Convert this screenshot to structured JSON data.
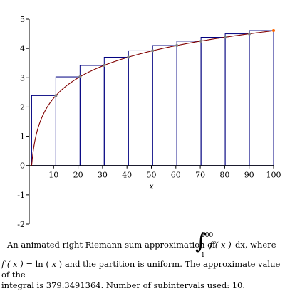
{
  "chart_data": {
    "type": "bar",
    "xlabel": "x",
    "ylabel": "",
    "xlim": [
      0,
      100
    ],
    "ylim": [
      -2,
      5
    ],
    "xticks": [
      "10",
      "20",
      "30",
      "40",
      "50",
      "60",
      "70",
      "80",
      "90",
      "100"
    ],
    "yticks": [
      "-2",
      "-1",
      "0",
      "1",
      "2",
      "3",
      "4",
      "5"
    ],
    "rectangles": [
      {
        "x_left": 1,
        "x_right": 10.9,
        "height": 2.39
      },
      {
        "x_left": 10.9,
        "x_right": 20.8,
        "height": 3.03
      },
      {
        "x_left": 20.8,
        "x_right": 30.7,
        "height": 3.42
      },
      {
        "x_left": 30.7,
        "x_right": 40.6,
        "height": 3.7
      },
      {
        "x_left": 40.6,
        "x_right": 50.5,
        "height": 3.92
      },
      {
        "x_left": 50.5,
        "x_right": 60.4,
        "height": 4.1
      },
      {
        "x_left": 60.4,
        "x_right": 70.3,
        "height": 4.25
      },
      {
        "x_left": 70.3,
        "x_right": 80.2,
        "height": 4.38
      },
      {
        "x_left": 80.2,
        "x_right": 90.1,
        "height": 4.5
      },
      {
        "x_left": 90.1,
        "x_right": 100,
        "height": 4.61
      }
    ],
    "curve": {
      "function": "ln(x)",
      "x_start": 1,
      "x_end": 100
    },
    "colors": {
      "rectangles": "#000080",
      "curve": "#800000",
      "points": "#808080",
      "last_point": "#ff6600"
    }
  },
  "caption": {
    "line1_start": "An animated right Riemann sum approximation of",
    "integral_upper": "100",
    "integral_lower": "1",
    "integrand": "f ( x )",
    "differential": "dx, where",
    "line2_fx": "f ( x )",
    "line2_eq": " = ln ( ",
    "line2_x": "x",
    "line2_rest": " )  and the partition is uniform.  The approximate value of the",
    "line3": "integral is 379.3491364.  Number of subintervals used: 10."
  }
}
